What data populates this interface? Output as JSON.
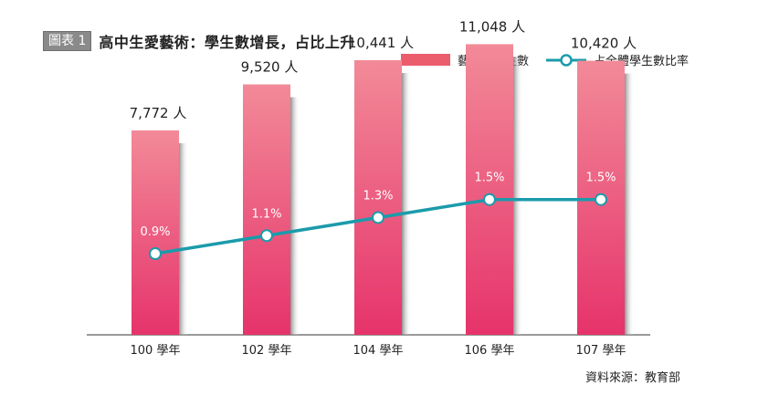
{
  "figure_tag": "圖表 1",
  "title": "高中生愛藝術：學生數增長，占比上升",
  "source": "資料來源：教育部",
  "colors": {
    "bar_top": "#f28a98",
    "bar_bottom": "#e6336b",
    "bar_shadow": "#9a9a9a",
    "line": "#1b9bab",
    "legend_bar": "#eb5d6d"
  },
  "legend": {
    "bar_label": "藝術群學生數",
    "line_label": "占全體學生數比率"
  },
  "chart_data": {
    "type": "bar",
    "categories": [
      "100 學年",
      "102 學年",
      "104 學年",
      "106 學年",
      "107 學年"
    ],
    "series": [
      {
        "name": "藝術群學生數",
        "type": "bar",
        "values": [
          7772,
          9520,
          10441,
          11048,
          10420
        ],
        "labels": [
          "7,772 人",
          "9,520 人",
          "10,441 人",
          "11,048 人",
          "10,420 人"
        ]
      },
      {
        "name": "占全體學生數比率",
        "type": "line",
        "values": [
          0.9,
          1.1,
          1.3,
          1.5,
          1.5
        ],
        "labels": [
          "0.9%",
          "1.1%",
          "1.3%",
          "1.5%",
          "1.5%"
        ]
      }
    ],
    "ylim": [
      0,
      12000
    ],
    "y2lim": [
      0,
      3.5
    ],
    "grid": false,
    "legend_position": "top-right"
  }
}
